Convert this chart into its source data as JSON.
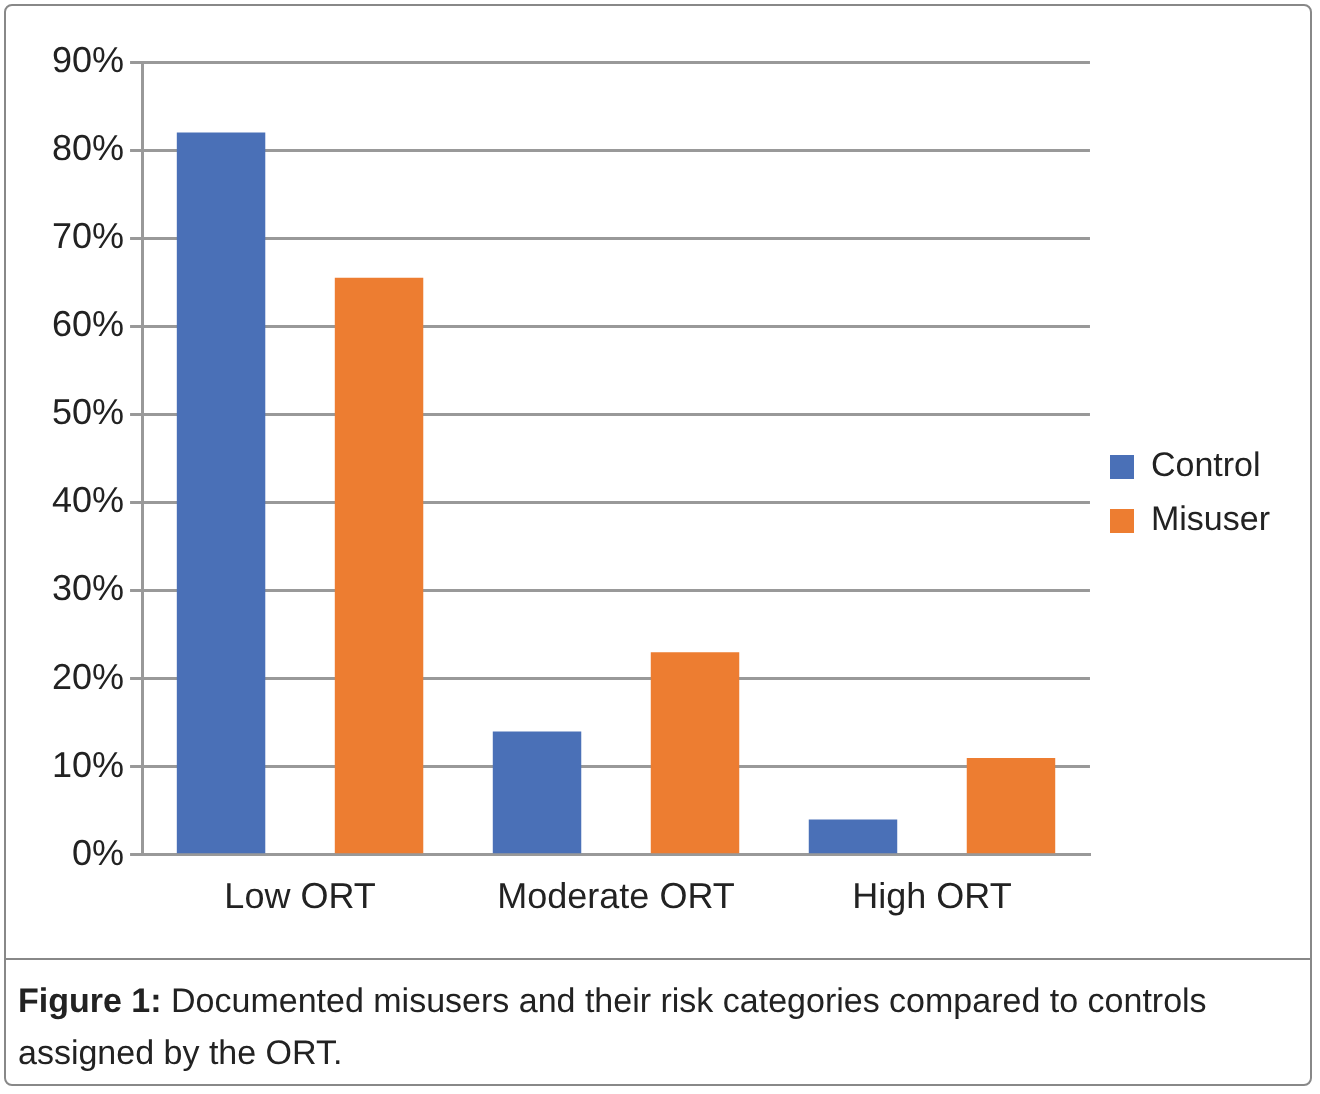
{
  "chart_data": {
    "type": "bar",
    "categories": [
      "Low ORT",
      "Moderate ORT",
      "High ORT"
    ],
    "series": [
      {
        "name": "Control",
        "color": "#4a70b7",
        "values": [
          82,
          14,
          4
        ]
      },
      {
        "name": "Misuser",
        "color": "#ed7d31",
        "values": [
          65.5,
          23,
          11
        ]
      }
    ],
    "ylim": [
      0,
      90
    ],
    "yticks": [
      {
        "value": 0,
        "label": "0%"
      },
      {
        "value": 10,
        "label": "10%"
      },
      {
        "value": 20,
        "label": "20%"
      },
      {
        "value": 30,
        "label": "30%"
      },
      {
        "value": 40,
        "label": "40%"
      },
      {
        "value": 50,
        "label": "50%"
      },
      {
        "value": 60,
        "label": "60%"
      },
      {
        "value": 70,
        "label": "70%"
      },
      {
        "value": 80,
        "label": "80%"
      },
      {
        "value": 90,
        "label": "90%"
      }
    ],
    "grid": "y",
    "legend": "right",
    "annotations": [
      "Figure 1: Documented misusers and their risk categories compared to controls assigned by the ORT."
    ]
  }
}
